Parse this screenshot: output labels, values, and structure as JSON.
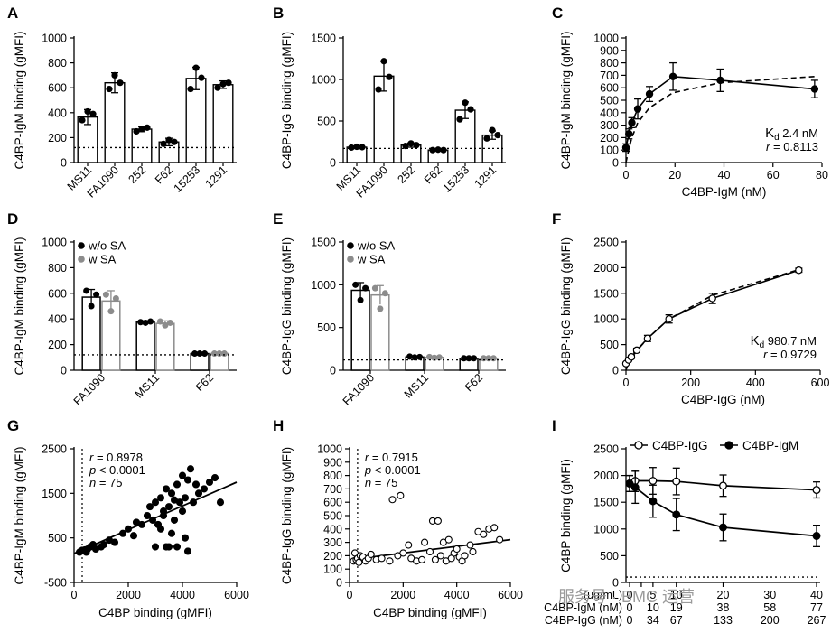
{
  "watermark": "服务号 · BMC 运营",
  "chart_data": [
    {
      "panel": "A",
      "type": "bar",
      "ylabel": "C4BP-IgM binding (gMFI)",
      "ylim": [
        0,
        1000
      ],
      "yticks": [
        "0",
        "200",
        "400",
        "600",
        "800",
        "1000"
      ],
      "categories": [
        "MS11",
        "FA1090",
        "252",
        "F62",
        "15253",
        "1291"
      ],
      "values": [
        365,
        640,
        268,
        165,
        675,
        625
      ],
      "errors": [
        60,
        80,
        20,
        30,
        90,
        30
      ],
      "points": [
        [
          340,
          410,
          390
        ],
        [
          590,
          700,
          640
        ],
        [
          250,
          270,
          280
        ],
        [
          150,
          180,
          165
        ],
        [
          590,
          760,
          680
        ],
        [
          600,
          630,
          640
        ]
      ],
      "cutoff": 120
    },
    {
      "panel": "B",
      "type": "bar",
      "ylabel": "C4BP-IgG binding (gMFI)",
      "ylim": [
        0,
        1500
      ],
      "yticks": [
        "0",
        "500",
        "1000",
        "1500"
      ],
      "categories": [
        "MS11",
        "FA1090",
        "252",
        "F62",
        "15253",
        "1291"
      ],
      "values": [
        185,
        1040,
        210,
        150,
        630,
        330
      ],
      "errors": [
        15,
        180,
        25,
        10,
        100,
        50
      ],
      "points": [
        [
          180,
          190,
          185
        ],
        [
          880,
          1220,
          1030
        ],
        [
          200,
          230,
          210
        ],
        [
          150,
          155,
          150
        ],
        [
          520,
          720,
          640
        ],
        [
          290,
          390,
          330
        ]
      ],
      "cutoff": 170
    },
    {
      "panel": "C",
      "type": "scatter",
      "xlabel": "C4BP-IgM (nM)",
      "ylabel": "C4BP-IgM binding (gMFI)",
      "xlim": [
        0,
        80
      ],
      "ylim": [
        0,
        1000
      ],
      "xticks": [
        "0",
        "20",
        "40",
        "60",
        "80"
      ],
      "yticks": [
        "0",
        "100",
        "200",
        "300",
        "400",
        "500",
        "600",
        "700",
        "800",
        "900",
        "1000"
      ],
      "x": [
        0,
        1.2,
        2.4,
        4.8,
        9.6,
        19.2,
        38.5,
        77
      ],
      "y": [
        120,
        230,
        320,
        430,
        550,
        690,
        660,
        590
      ],
      "errors": [
        30,
        40,
        40,
        80,
        60,
        110,
        90,
        70
      ],
      "fit_y": [
        0,
        110,
        200,
        320,
        440,
        560,
        640,
        690
      ],
      "kd_label": "K",
      "kd_sub": "d",
      "kd_value": " 2.4 nM",
      "r_label": "r",
      "r_value": " = 0.8113"
    },
    {
      "panel": "D",
      "type": "bar",
      "ylabel": "C4BP-IgM binding (gMFI)",
      "ylim": [
        0,
        1000
      ],
      "yticks": [
        "0",
        "200",
        "400",
        "600",
        "800",
        "1000"
      ],
      "categories": [
        "FA1090",
        "MS11",
        "F62"
      ],
      "series": [
        {
          "name": "w/o SA",
          "color": "#000000",
          "values": [
            570,
            375,
            130
          ],
          "errors": [
            60,
            10,
            5
          ],
          "points": [
            [
              620,
              500,
              590
            ],
            [
              375,
              370,
              380
            ],
            [
              130,
              130,
              130
            ]
          ]
        },
        {
          "name": "w SA",
          "color": "#8c8c8c",
          "values": [
            540,
            365,
            130
          ],
          "errors": [
            80,
            20,
            5
          ],
          "points": [
            [
              590,
              460,
              560
            ],
            [
              380,
              350,
              370
            ],
            [
              130,
              130,
              130
            ]
          ]
        }
      ],
      "cutoff": 120
    },
    {
      "panel": "E",
      "type": "bar",
      "ylabel": "C4BP-IgG binding (gMFI)",
      "ylim": [
        0,
        1500
      ],
      "yticks": [
        "0",
        "500",
        "1000",
        "1500"
      ],
      "categories": [
        "FA1090",
        "MS11",
        "F62"
      ],
      "series": [
        {
          "name": "w/o SA",
          "color": "#000000",
          "values": [
            935,
            155,
            140
          ],
          "errors": [
            90,
            10,
            5
          ],
          "points": [
            [
              1000,
              820,
              960
            ],
            [
              160,
              150,
              155
            ],
            [
              140,
              140,
              140
            ]
          ]
        },
        {
          "name": "w SA",
          "color": "#8c8c8c",
          "values": [
            880,
            150,
            140
          ],
          "errors": [
            110,
            10,
            5
          ],
          "points": [
            [
              960,
              720,
              900
            ],
            [
              155,
              145,
              150
            ],
            [
              140,
              140,
              140
            ]
          ]
        }
      ],
      "cutoff": 120
    },
    {
      "panel": "F",
      "type": "scatter",
      "xlabel": "C4BP-IgG (nM)",
      "ylabel": "C4BP-IgG binding (gMFI)",
      "xlim": [
        0,
        600
      ],
      "ylim": [
        0,
        2500
      ],
      "xticks": [
        "0",
        "200",
        "400",
        "600"
      ],
      "yticks": [
        "0",
        "500",
        "1000",
        "1500",
        "2000",
        "2500"
      ],
      "x": [
        0,
        8.3,
        16.7,
        33.4,
        66.7,
        133,
        267,
        534
      ],
      "y": [
        130,
        200,
        260,
        390,
        620,
        1000,
        1400,
        1950
      ],
      "errors": [
        20,
        20,
        30,
        40,
        60,
        80,
        100,
        40
      ],
      "fit_y": [
        0,
        150,
        230,
        380,
        620,
        1000,
        1460,
        1960
      ],
      "kd_label": "K",
      "kd_sub": "d",
      "kd_value": " 980.7 nM",
      "r_label": "r",
      "r_value": " = 0.9729"
    },
    {
      "panel": "G",
      "type": "scatter",
      "xlabel": "C4BP binding (gMFI)",
      "ylabel": "C4BP-IgM binding (gMFI)",
      "xlim": [
        0,
        6000
      ],
      "ylim": [
        -500,
        2500
      ],
      "xticks": [
        "0",
        "2000",
        "4000",
        "6000"
      ],
      "yticks": [
        "-500",
        "500",
        "1500",
        "2500"
      ],
      "vline": 300,
      "fit": [
        [
          0,
          150
        ],
        [
          6000,
          1750
        ]
      ],
      "r_stat": "= 0.8978",
      "p_stat": "< 0.0001",
      "n_stat": "= 75",
      "x": [
        200,
        250,
        300,
        350,
        400,
        450,
        500,
        600,
        700,
        800,
        1000,
        1100,
        1300,
        1500,
        1800,
        2000,
        2200,
        2300,
        2500,
        2700,
        2800,
        2900,
        3000,
        3000,
        3100,
        3200,
        3200,
        3300,
        3300,
        3400,
        3400,
        3500,
        3500,
        3600,
        3600,
        3700,
        3700,
        3800,
        3800,
        3900,
        4000,
        4000,
        4100,
        4100,
        4200,
        4200,
        4300,
        4400,
        4500,
        4600,
        4800,
        5000,
        5200,
        5400
      ],
      "y": [
        180,
        200,
        220,
        210,
        230,
        180,
        250,
        300,
        350,
        250,
        300,
        350,
        450,
        400,
        600,
        700,
        550,
        850,
        800,
        1000,
        1200,
        900,
        300,
        1300,
        800,
        1400,
        700,
        1000,
        1100,
        300,
        1600,
        1200,
        300,
        1500,
        600,
        1350,
        900,
        1700,
        300,
        1300,
        1100,
        1900,
        500,
        1400,
        200,
        1800,
        2050,
        1300,
        1700,
        1500,
        1600,
        1750,
        1850,
        1300
      ]
    },
    {
      "panel": "H",
      "type": "scatter",
      "xlabel": "C4BP binding (gMFI)",
      "ylabel": "C4BP-IgG binding (gMFI)",
      "xlim": [
        0,
        6000
      ],
      "ylim": [
        0,
        1000
      ],
      "xticks": [
        "0",
        "2000",
        "4000",
        "6000"
      ],
      "yticks": [
        "0",
        "100",
        "200",
        "300",
        "400",
        "500",
        "600",
        "700",
        "800",
        "900",
        "1000"
      ],
      "vline": 300,
      "fit": [
        [
          0,
          170
        ],
        [
          6000,
          320
        ]
      ],
      "r_stat": "= 0.7915",
      "p_stat": "< 0.0001",
      "n_stat": "= 75",
      "x": [
        150,
        200,
        250,
        300,
        350,
        400,
        500,
        600,
        700,
        800,
        1000,
        1200,
        1500,
        1600,
        1800,
        1900,
        2000,
        2200,
        2300,
        2500,
        2700,
        2800,
        3000,
        3100,
        3200,
        3300,
        3400,
        3500,
        3600,
        3700,
        3800,
        3900,
        4000,
        4100,
        4200,
        4300,
        4500,
        4600,
        4800,
        5000,
        5200,
        5400,
        5600
      ],
      "y": [
        160,
        220,
        170,
        180,
        150,
        200,
        190,
        160,
        180,
        210,
        170,
        180,
        160,
        620,
        200,
        650,
        220,
        280,
        180,
        160,
        170,
        300,
        230,
        460,
        170,
        460,
        200,
        300,
        160,
        320,
        180,
        220,
        250,
        190,
        160,
        200,
        280,
        230,
        380,
        360,
        400,
        410,
        320
      ]
    },
    {
      "panel": "I",
      "type": "line",
      "ylabel": "C4BP binding (gMFI)",
      "ylim": [
        0,
        2500
      ],
      "yticks": [
        "0",
        "500",
        "1000",
        "1500",
        "2000",
        "2500"
      ],
      "x": [
        0,
        2.5,
        5,
        10,
        20,
        40
      ],
      "xtick_rows": [
        {
          "label": "(ug/mL)",
          "values": [
            "0",
            "5",
            "10",
            "20",
            "30",
            "40"
          ]
        },
        {
          "label": "C4BP-IgM (nM)",
          "values": [
            "0",
            "10",
            "19",
            "38",
            "58",
            "77"
          ]
        },
        {
          "label": "C4BP-IgG (nM)",
          "values": [
            "0",
            "34",
            "67",
            "133",
            "200",
            "267"
          ]
        }
      ],
      "series": [
        {
          "name": "C4BP-IgG",
          "marker": "open",
          "values": [
            1850,
            1900,
            1900,
            1890,
            1810,
            1730
          ],
          "errors": [
            150,
            200,
            250,
            250,
            200,
            150
          ]
        },
        {
          "name": "C4BP-IgM",
          "marker": "filled",
          "values": [
            1850,
            1780,
            1520,
            1270,
            1030,
            870
          ],
          "errors": [
            150,
            300,
            300,
            300,
            250,
            200
          ]
        }
      ],
      "cutoff": 100
    }
  ]
}
